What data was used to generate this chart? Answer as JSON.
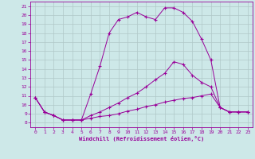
{
  "xlabel": "Windchill (Refroidissement éolien,°C)",
  "bg_color": "#cde8e8",
  "grid_color": "#b0c8c8",
  "line_color": "#990099",
  "xlim": [
    -0.5,
    23.5
  ],
  "ylim": [
    7.5,
    21.5
  ],
  "xticks": [
    0,
    1,
    2,
    3,
    4,
    5,
    6,
    7,
    8,
    9,
    10,
    11,
    12,
    13,
    14,
    15,
    16,
    17,
    18,
    19,
    20,
    21,
    22,
    23
  ],
  "yticks": [
    8,
    9,
    10,
    11,
    12,
    13,
    14,
    15,
    16,
    17,
    18,
    19,
    20,
    21
  ],
  "series1_x": [
    0,
    1,
    2,
    3,
    4,
    5,
    6,
    7,
    8,
    9,
    10,
    11,
    12,
    13,
    14,
    15,
    16,
    17,
    18,
    19,
    20,
    21,
    22,
    23
  ],
  "series1_y": [
    10.8,
    9.2,
    8.8,
    8.3,
    8.3,
    8.3,
    11.2,
    14.3,
    18.0,
    19.5,
    19.8,
    20.3,
    19.8,
    19.5,
    20.8,
    20.8,
    20.3,
    19.3,
    17.3,
    15.0,
    9.7,
    9.2,
    9.2,
    9.2
  ],
  "series2_x": [
    0,
    1,
    2,
    3,
    4,
    5,
    6,
    7,
    8,
    9,
    10,
    11,
    12,
    13,
    14,
    15,
    16,
    17,
    18,
    19,
    20,
    21,
    22,
    23
  ],
  "series2_y": [
    10.8,
    9.2,
    8.8,
    8.3,
    8.3,
    8.3,
    8.8,
    9.2,
    9.7,
    10.2,
    10.8,
    11.3,
    12.0,
    12.8,
    13.5,
    14.8,
    14.5,
    13.3,
    12.5,
    12.0,
    9.7,
    9.2,
    9.2,
    9.2
  ],
  "series3_x": [
    0,
    1,
    2,
    3,
    4,
    5,
    6,
    7,
    8,
    9,
    10,
    11,
    12,
    13,
    14,
    15,
    16,
    17,
    18,
    19,
    20,
    21,
    22,
    23
  ],
  "series3_y": [
    10.8,
    9.2,
    8.8,
    8.3,
    8.3,
    8.3,
    8.5,
    8.7,
    8.8,
    9.0,
    9.3,
    9.5,
    9.8,
    10.0,
    10.3,
    10.5,
    10.7,
    10.8,
    11.0,
    11.2,
    9.7,
    9.2,
    9.2,
    9.2
  ]
}
